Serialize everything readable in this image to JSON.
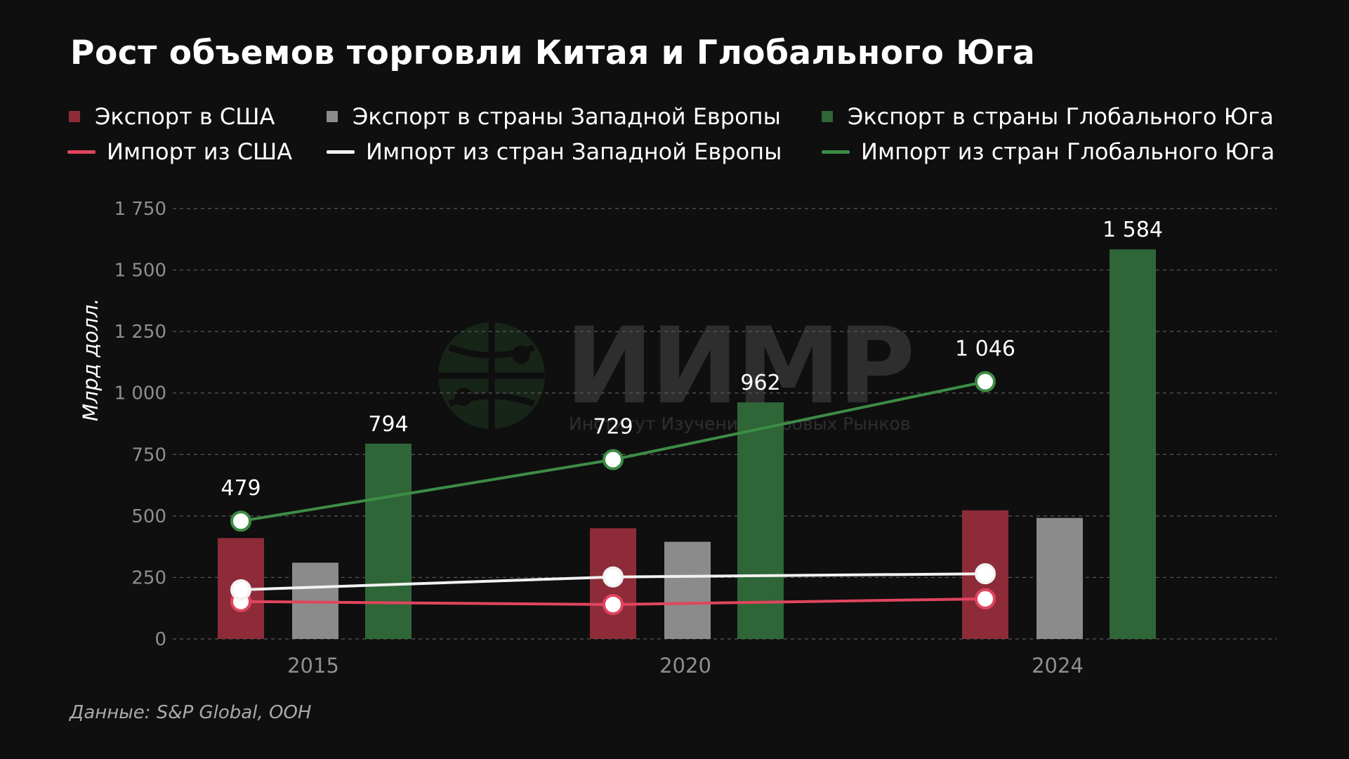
{
  "title": "Рост объемов торговли Китая и Глобального Юга",
  "source": "Данные: S&P Global, ООН",
  "watermark": {
    "name": "ИИМР",
    "subtitle": "Институт Изучения Мировых Рынков"
  },
  "legend": [
    {
      "label": "Экспорт в США",
      "kind": "bar",
      "color": "#8e2b39"
    },
    {
      "label": "Экспорт в страны Западной Европы",
      "kind": "bar",
      "color": "#8b8b8b"
    },
    {
      "label": "Экспорт в страны Глобального Юга",
      "kind": "bar",
      "color": "#2f6637"
    },
    {
      "label": "Импорт из США",
      "kind": "line",
      "color": "#e2455e"
    },
    {
      "label": "Импорт из стран Западной Европы",
      "kind": "line",
      "color": "#f2f2f2"
    },
    {
      "label": "Импорт из стран Глобального Юга",
      "kind": "line",
      "color": "#3d8c45"
    }
  ],
  "chart_data": {
    "type": "bar",
    "categories": [
      "2015",
      "2020",
      "2024"
    ],
    "ylabel": "Млрд долл.",
    "ylim": [
      0,
      1750
    ],
    "yticks": [
      0,
      250,
      500,
      750,
      1000,
      1250,
      1500,
      1750
    ],
    "ytick_labels": [
      "0",
      "250",
      "500",
      "750",
      "1 000",
      "1 250",
      "1 500",
      "1 750"
    ],
    "grid": true,
    "series": [
      {
        "name": "Экспорт в США",
        "kind": "bar",
        "color": "#8e2b39",
        "values": [
          410,
          450,
          523
        ],
        "labels": [
          "",
          "",
          ""
        ]
      },
      {
        "name": "Экспорт в страны Западной Европы",
        "kind": "bar",
        "color": "#8b8b8b",
        "values": [
          310,
          395,
          492
        ],
        "labels": [
          "",
          "",
          ""
        ]
      },
      {
        "name": "Экспорт в страны Глобального Юга",
        "kind": "bar",
        "color": "#2f6637",
        "values": [
          794,
          962,
          1584
        ],
        "labels": [
          "794",
          "962",
          "1 584"
        ]
      },
      {
        "name": "Импорт из США",
        "kind": "line",
        "color": "#e2455e",
        "values": [
          152,
          140,
          163
        ],
        "labels": [
          "",
          "",
          ""
        ]
      },
      {
        "name": "Импорт из стран Западной Европы",
        "kind": "line",
        "color": "#f2f2f2",
        "values": [
          200,
          252,
          265
        ],
        "labels": [
          "",
          "",
          ""
        ]
      },
      {
        "name": "Импорт из стран Глобального Юга",
        "kind": "line",
        "color": "#3d8c45",
        "values": [
          479,
          729,
          1046
        ],
        "labels": [
          "479",
          "729",
          "1 046"
        ]
      }
    ]
  }
}
